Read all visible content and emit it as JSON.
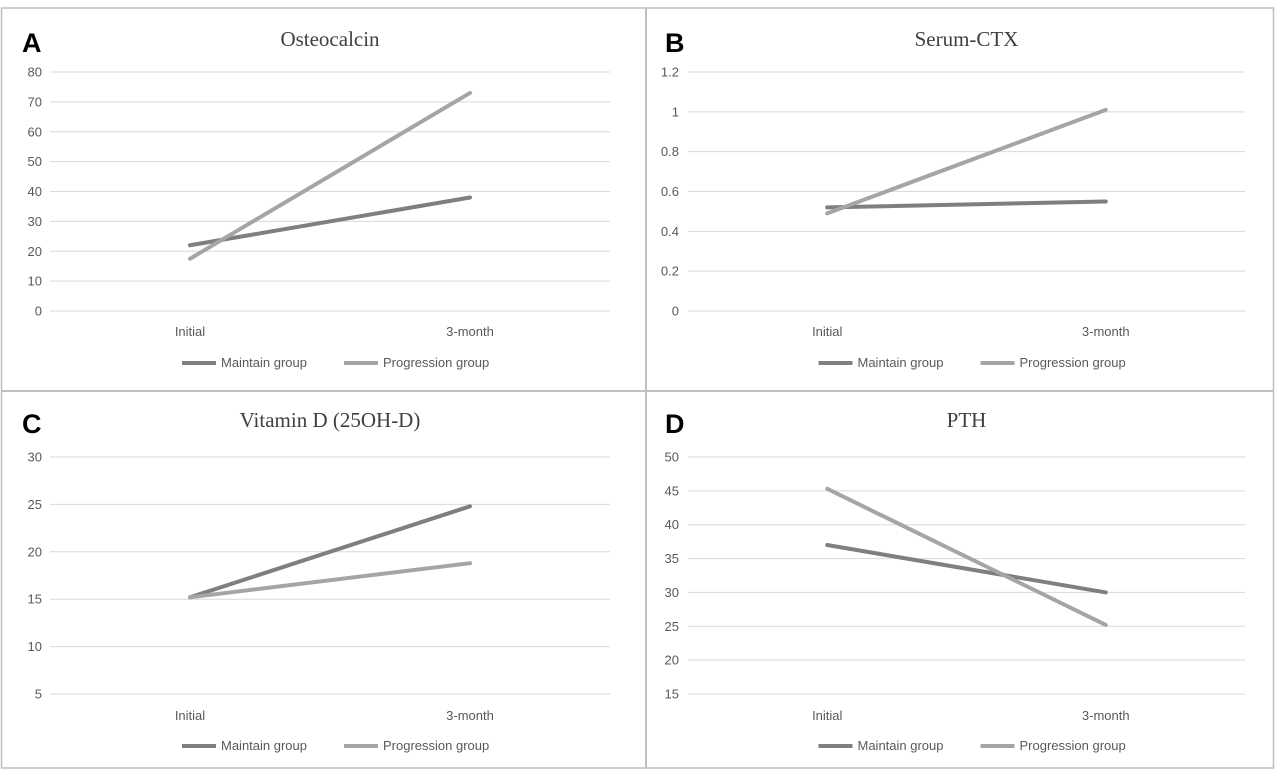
{
  "figure": {
    "colors": {
      "maintain": "#7f7f7f",
      "progression": "#a5a5a5",
      "grid": "#d9d9d9",
      "border": "#bfbfbf"
    }
  },
  "chart_data": [
    {
      "panel": "A",
      "type": "line",
      "title": "Osteocalcin",
      "categories": [
        "Initial",
        "3-month"
      ],
      "series": [
        {
          "name": "Maintain group",
          "values": [
            22,
            38
          ]
        },
        {
          "name": "Progression group",
          "values": [
            17.5,
            73
          ]
        }
      ],
      "ylim": [
        0,
        80
      ],
      "yticks": [
        "0",
        "10",
        "20",
        "30",
        "40",
        "50",
        "60",
        "70",
        "80"
      ],
      "grid": true,
      "legend": "bottom"
    },
    {
      "panel": "B",
      "type": "line",
      "title": "Serum-CTX",
      "categories": [
        "Initial",
        "3-month"
      ],
      "series": [
        {
          "name": "Maintain group",
          "values": [
            0.52,
            0.55
          ]
        },
        {
          "name": "Progression group",
          "values": [
            0.49,
            1.01
          ]
        }
      ],
      "ylim": [
        0,
        1.2
      ],
      "yticks": [
        "0",
        "0.2",
        "0.4",
        "0.6",
        "0.8",
        "1",
        "1.2"
      ],
      "grid": true,
      "legend": "bottom"
    },
    {
      "panel": "C",
      "type": "line",
      "title": "Vitamin D (25OH-D)",
      "categories": [
        "Initial",
        "3-month"
      ],
      "series": [
        {
          "name": "Maintain group",
          "values": [
            15.2,
            24.8
          ]
        },
        {
          "name": "Progression group",
          "values": [
            15.2,
            18.8
          ]
        }
      ],
      "ylim": [
        5,
        30
      ],
      "yticks": [
        "5",
        "10",
        "15",
        "20",
        "25",
        "30"
      ],
      "grid": true,
      "legend": "bottom"
    },
    {
      "panel": "D",
      "type": "line",
      "title": "PTH",
      "categories": [
        "Initial",
        "3-month"
      ],
      "series": [
        {
          "name": "Maintain group",
          "values": [
            37,
            30
          ]
        },
        {
          "name": "Progression group",
          "values": [
            45.3,
            25.2
          ]
        }
      ],
      "ylim": [
        15,
        50
      ],
      "yticks": [
        "15",
        "20",
        "25",
        "30",
        "35",
        "40",
        "45",
        "50"
      ],
      "grid": true,
      "legend": "bottom"
    }
  ]
}
